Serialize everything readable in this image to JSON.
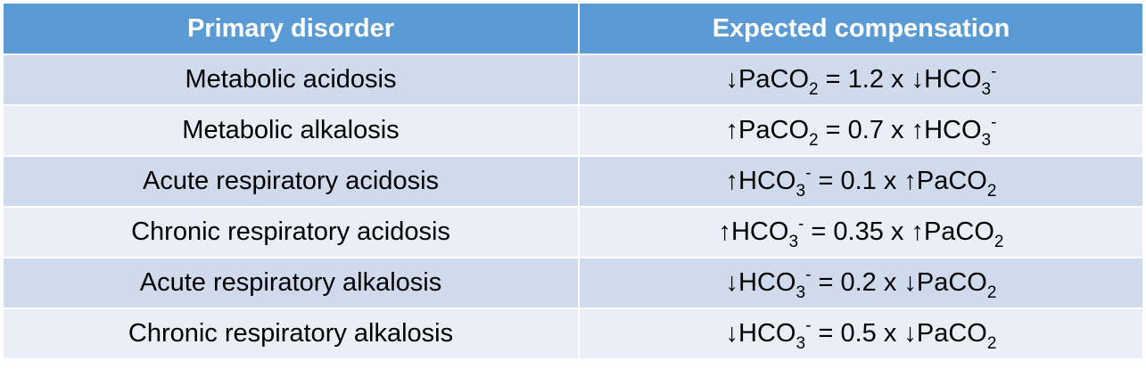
{
  "table": {
    "headers": {
      "primary": "Primary disorder",
      "compensation": "Expected compensation"
    },
    "rows": [
      {
        "disorder": "Metabolic acidosis",
        "formula": [
          {
            "t": "↓PaCO"
          },
          {
            "sub": "2"
          },
          {
            "t": " = 1.2 x ↓HCO"
          },
          {
            "sub": "3"
          },
          {
            "sup": "-"
          }
        ]
      },
      {
        "disorder": "Metabolic alkalosis",
        "formula": [
          {
            "t": "↑PaCO"
          },
          {
            "sub": "2"
          },
          {
            "t": " = 0.7 x ↑HCO"
          },
          {
            "sub": "3"
          },
          {
            "sup": "-"
          }
        ]
      },
      {
        "disorder": "Acute respiratory acidosis",
        "formula": [
          {
            "t": "↑HCO"
          },
          {
            "sub": "3"
          },
          {
            "sup": "-"
          },
          {
            "t": " = 0.1 x ↑PaCO"
          },
          {
            "sub": "2"
          }
        ]
      },
      {
        "disorder": "Chronic respiratory acidosis",
        "formula": [
          {
            "t": "↑HCO"
          },
          {
            "sub": "3"
          },
          {
            "sup": "-"
          },
          {
            "t": " = 0.35 x ↑PaCO"
          },
          {
            "sub": "2"
          }
        ]
      },
      {
        "disorder": "Acute respiratory alkalosis",
        "formula": [
          {
            "t": "↓HCO"
          },
          {
            "sub": "3"
          },
          {
            "sup": "-"
          },
          {
            "t": " = 0.2 x ↓PaCO"
          },
          {
            "sub": "2"
          }
        ]
      },
      {
        "disorder": "Chronic respiratory alkalosis",
        "formula": [
          {
            "t": "↓HCO"
          },
          {
            "sub": "3"
          },
          {
            "sup": "-"
          },
          {
            "t": " = 0.5 x ↓PaCO"
          },
          {
            "sub": "2"
          }
        ]
      }
    ]
  },
  "colors": {
    "header_bg": "#5b9bd5",
    "row_odd_bg": "#cfdaed",
    "row_even_bg": "#e9eef7"
  }
}
